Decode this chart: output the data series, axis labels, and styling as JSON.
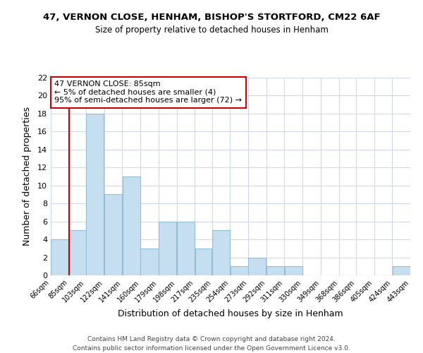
{
  "title_line1": "47, VERNON CLOSE, HENHAM, BISHOP'S STORTFORD, CM22 6AF",
  "title_line2": "Size of property relative to detached houses in Henham",
  "xlabel": "Distribution of detached houses by size in Henham",
  "ylabel": "Number of detached properties",
  "bar_color": "#c5dff0",
  "bar_edge_color": "#93bdd4",
  "annotation_box_color": "#ffffff",
  "annotation_box_edge_color": "#cc0000",
  "vline_color": "#cc0000",
  "vline_x_index": 1,
  "bins": [
    66,
    85,
    103,
    122,
    141,
    160,
    179,
    198,
    217,
    235,
    254,
    273,
    292,
    311,
    330,
    349,
    368,
    386,
    405,
    424,
    443
  ],
  "counts": [
    4,
    5,
    18,
    9,
    11,
    3,
    6,
    6,
    3,
    5,
    1,
    2,
    1,
    1,
    0,
    0,
    0,
    0,
    0,
    1
  ],
  "tick_labels": [
    "66sqm",
    "85sqm",
    "103sqm",
    "122sqm",
    "141sqm",
    "160sqm",
    "179sqm",
    "198sqm",
    "217sqm",
    "235sqm",
    "254sqm",
    "273sqm",
    "292sqm",
    "311sqm",
    "330sqm",
    "349sqm",
    "368sqm",
    "386sqm",
    "405sqm",
    "424sqm",
    "443sqm"
  ],
  "ylim": [
    0,
    22
  ],
  "yticks": [
    0,
    2,
    4,
    6,
    8,
    10,
    12,
    14,
    16,
    18,
    20,
    22
  ],
  "annotation_title": "47 VERNON CLOSE: 85sqm",
  "annotation_line1": "← 5% of detached houses are smaller (4)",
  "annotation_line2": "95% of semi-detached houses are larger (72) →",
  "footer_line1": "Contains HM Land Registry data © Crown copyright and database right 2024.",
  "footer_line2": "Contains public sector information licensed under the Open Government Licence v3.0.",
  "background_color": "#ffffff",
  "grid_color": "#d0d8e8"
}
